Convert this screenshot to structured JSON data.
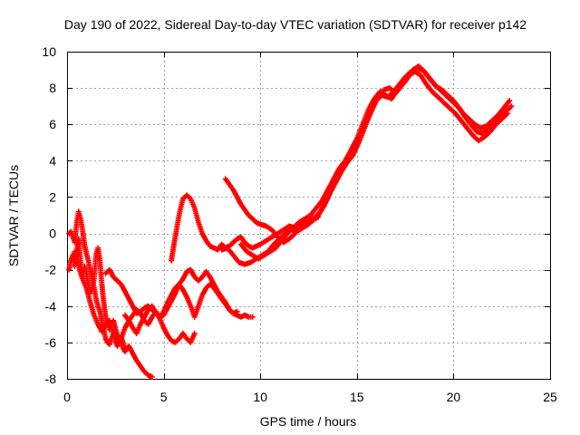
{
  "chart_data": {
    "type": "scatter",
    "title": "Day 190 of 2022, Sidereal Day-to-day VTEC variation (SDTVAR) for receiver p142",
    "xlabel": "GPS time / hours",
    "ylabel": "SDTVAR / TECUs",
    "xlim": [
      0,
      25
    ],
    "ylim": [
      -8,
      10
    ],
    "xticks": [
      0,
      5,
      10,
      15,
      20,
      25
    ],
    "yticks": [
      -8,
      -6,
      -4,
      -2,
      0,
      2,
      4,
      6,
      8,
      10
    ],
    "grid": true,
    "legend": "none",
    "marker": "+",
    "color": "#ff0000",
    "series": [
      {
        "x": [
          0.1,
          0.2,
          0.3,
          0.4,
          0.5,
          0.6,
          0.7,
          0.8,
          0.9,
          1.0,
          1.1,
          1.2,
          1.3,
          1.4,
          1.5,
          1.6,
          1.7,
          1.8,
          1.9,
          2.0,
          2.1,
          2.2,
          2.3,
          2.4,
          2.5,
          2.6,
          2.7,
          2.8,
          2.9,
          3.0
        ],
        "y": [
          0.0,
          0.1,
          -0.2,
          -0.5,
          0.6,
          1.2,
          0.8,
          0.2,
          -0.6,
          -1.1,
          -1.5,
          -2.0,
          -2.5,
          -3.0,
          -3.6,
          -4.0,
          -4.3,
          -4.8,
          -5.3,
          -5.8,
          -6.0,
          -6.1,
          -5.8,
          -5.5,
          -5.9,
          -6.2,
          -6.0,
          -5.7,
          -6.0,
          -6.4
        ]
      },
      {
        "x": [
          0.1,
          0.2,
          0.3,
          0.4,
          0.5,
          0.6,
          0.7,
          0.8,
          0.9,
          1.0,
          1.1,
          1.2,
          1.3,
          1.4,
          1.5,
          1.6,
          1.7,
          1.8,
          1.9,
          2.0,
          2.1,
          2.2,
          2.3,
          2.4,
          2.5,
          2.6,
          2.7,
          2.8,
          2.9,
          3.0,
          3.2,
          3.4,
          3.6,
          3.8,
          4.0,
          4.2,
          4.4
        ],
        "y": [
          -2.0,
          -1.5,
          -1.2,
          -1.8,
          -1.0,
          -0.3,
          -1.6,
          -2.4,
          -1.8,
          -2.2,
          -2.8,
          -3.3,
          -3.0,
          -2.5,
          -1.2,
          -0.8,
          -1.5,
          -2.8,
          -3.8,
          -4.6,
          -5.0,
          -5.3,
          -5.0,
          -4.8,
          -5.2,
          -5.6,
          -5.8,
          -6.0,
          -6.3,
          -6.5,
          -6.2,
          -6.6,
          -7.0,
          -7.3,
          -7.6,
          -7.8,
          -7.9
        ]
      },
      {
        "x": [
          0.2,
          0.4,
          0.6,
          0.8,
          1.0,
          1.2,
          1.4,
          1.6,
          1.8,
          2.0,
          2.2,
          2.4,
          2.6,
          2.8,
          3.0,
          3.2,
          3.4,
          3.6,
          3.8,
          4.0,
          4.2,
          4.4,
          4.6,
          4.8,
          5.0,
          5.2,
          5.4,
          5.6,
          5.8,
          6.0,
          6.2,
          6.4,
          6.6
        ],
        "y": [
          -1.5,
          -1.0,
          -1.8,
          -2.5,
          -3.0,
          -3.8,
          -4.5,
          -5.0,
          -5.4,
          -5.0,
          -4.8,
          -5.5,
          -6.0,
          -5.8,
          -5.2,
          -4.8,
          -4.5,
          -4.2,
          -4.4,
          -4.8,
          -5.0,
          -4.6,
          -4.3,
          -4.7,
          -5.2,
          -5.6,
          -5.9,
          -6.0,
          -5.8,
          -5.5,
          -5.8,
          -6.0,
          -5.5
        ]
      },
      {
        "x": [
          2.0,
          2.2,
          2.4,
          2.6,
          2.8,
          3.0,
          3.2,
          3.4,
          3.6,
          3.8,
          4.0,
          4.2,
          4.4,
          4.6,
          4.8,
          5.0,
          5.2,
          5.4,
          5.6,
          5.8,
          6.0,
          6.2,
          6.4,
          6.6,
          6.8,
          7.0,
          7.2,
          7.4,
          7.6,
          7.8,
          8.0,
          8.2,
          8.4,
          8.6,
          8.8,
          9.0,
          9.2,
          9.4,
          9.6
        ],
        "y": [
          -2.2,
          -2.0,
          -2.4,
          -2.6,
          -2.8,
          -3.2,
          -3.6,
          -4.0,
          -4.4,
          -4.3,
          -4.1,
          -4.0,
          -4.2,
          -4.4,
          -4.6,
          -4.5,
          -4.1,
          -3.7,
          -3.3,
          -2.8,
          -2.5,
          -2.1,
          -2.0,
          -2.4,
          -2.6,
          -2.4,
          -2.1,
          -2.4,
          -2.8,
          -3.2,
          -3.5,
          -3.8,
          -4.2,
          -4.4,
          -4.5,
          -4.6,
          -4.5,
          -4.6,
          -4.6
        ]
      },
      {
        "x": [
          3.0,
          3.2,
          3.4,
          3.6,
          3.8,
          4.0,
          4.2,
          4.4,
          4.6,
          4.8,
          5.0,
          5.2,
          5.4,
          5.6,
          5.8,
          6.0,
          6.2,
          6.4,
          6.6,
          6.8,
          7.0,
          7.2,
          7.4,
          7.6,
          7.8,
          8.0,
          8.2,
          8.4,
          8.6,
          8.8
        ],
        "y": [
          -4.5,
          -4.8,
          -5.2,
          -5.5,
          -5.0,
          -4.6,
          -4.2,
          -4.0,
          -4.4,
          -4.6,
          -4.3,
          -3.8,
          -3.4,
          -3.0,
          -2.8,
          -3.1,
          -3.5,
          -4.0,
          -4.6,
          -4.0,
          -3.4,
          -3.0,
          -2.8,
          -3.0,
          -3.3,
          -3.6,
          -3.9,
          -4.2,
          -4.4,
          -4.3
        ]
      },
      {
        "x": [
          5.4,
          5.5,
          5.6,
          5.7,
          5.8,
          5.9,
          6.0,
          6.1,
          6.2,
          6.4,
          6.6,
          6.8,
          7.0,
          7.2,
          7.4,
          7.6,
          7.8,
          8.0,
          8.2,
          8.4,
          8.6,
          8.8,
          9.0,
          9.2,
          9.4,
          9.6,
          9.8,
          10.0,
          10.3,
          10.6,
          10.9,
          11.2,
          11.5,
          11.8,
          12.1,
          12.4,
          12.7,
          13.0
        ],
        "y": [
          -1.5,
          -0.8,
          -0.2,
          0.4,
          1.0,
          1.5,
          1.9,
          2.0,
          2.1,
          1.9,
          1.4,
          0.6,
          0.0,
          -0.4,
          -0.7,
          -0.8,
          -0.9,
          -0.6,
          -0.8,
          -0.7,
          -0.5,
          -0.3,
          -0.2,
          -0.5,
          -0.7,
          -0.8,
          -0.7,
          -0.6,
          -0.4,
          -0.2,
          0.0,
          0.2,
          0.4,
          0.3,
          0.5,
          0.6,
          0.7,
          0.9
        ]
      },
      {
        "x": [
          8.2,
          8.4,
          8.6,
          8.8,
          9.0,
          9.2,
          9.4,
          9.6,
          9.8,
          10.0,
          10.3,
          10.6,
          10.9,
          11.2,
          11.5,
          11.8,
          12.1,
          12.4,
          12.7,
          13.0,
          13.3,
          13.6,
          13.9,
          14.2,
          14.5,
          14.8,
          15.1,
          15.4,
          15.7,
          16.0,
          16.3,
          16.6,
          16.9,
          17.2,
          17.5,
          17.8,
          18.1,
          18.4,
          18.7,
          19.0,
          19.3,
          19.6,
          19.9,
          20.2,
          20.5,
          20.8,
          21.1,
          21.4,
          21.7,
          22.0,
          22.3,
          22.6,
          22.9
        ],
        "y": [
          3.0,
          2.7,
          2.4,
          2.0,
          1.6,
          1.3,
          1.0,
          0.8,
          0.6,
          0.5,
          0.4,
          0.2,
          -0.2,
          -0.5,
          -0.3,
          0.0,
          0.4,
          0.7,
          0.8,
          1.0,
          1.5,
          2.2,
          2.8,
          3.4,
          3.9,
          4.3,
          5.0,
          5.8,
          6.6,
          7.3,
          7.6,
          7.5,
          7.8,
          8.2,
          8.6,
          8.9,
          9.1,
          9.0,
          8.6,
          8.2,
          7.9,
          7.6,
          7.3,
          7.0,
          6.6,
          6.3,
          6.0,
          5.8,
          5.9,
          6.2,
          6.5,
          6.9,
          7.3
        ]
      },
      {
        "x": [
          9.0,
          9.3,
          9.6,
          9.9,
          10.2,
          10.5,
          10.8,
          11.1,
          11.4,
          11.7,
          12.0,
          12.3,
          12.6,
          12.9,
          13.2,
          13.5,
          13.8,
          14.1,
          14.4,
          14.7,
          15.0,
          15.3,
          15.6,
          15.9,
          16.2,
          16.5,
          16.8,
          17.1,
          17.4,
          17.7,
          18.0,
          18.3,
          18.6,
          18.9,
          19.2,
          19.5,
          19.8,
          20.1,
          20.4,
          20.7,
          21.0,
          21.3,
          21.6,
          21.9,
          22.2,
          22.5,
          22.8
        ],
        "y": [
          -0.6,
          -1.0,
          -1.2,
          -1.4,
          -1.2,
          -1.0,
          -0.8,
          -0.4,
          0.0,
          0.3,
          0.6,
          0.8,
          1.0,
          1.4,
          1.8,
          2.4,
          3.0,
          3.6,
          4.0,
          4.6,
          5.2,
          6.0,
          6.8,
          7.4,
          7.8,
          7.6,
          7.4,
          7.9,
          8.3,
          8.7,
          8.9,
          8.7,
          8.2,
          7.8,
          7.5,
          7.2,
          6.9,
          6.6,
          6.2,
          5.8,
          5.4,
          5.1,
          5.3,
          5.6,
          6.0,
          6.3,
          6.6
        ]
      },
      {
        "x": [
          8.0,
          8.3,
          8.6,
          8.9,
          9.2,
          9.5,
          9.8,
          10.1,
          10.4,
          10.7,
          11.0,
          11.3,
          11.6,
          11.9,
          12.2,
          12.5,
          12.8,
          13.1,
          13.4,
          13.7,
          14.0,
          14.3,
          14.6,
          14.9,
          15.2,
          15.5,
          15.8,
          16.1,
          16.4,
          16.7,
          17.0,
          17.3,
          17.6,
          17.9,
          18.2,
          18.5,
          18.8,
          19.1,
          19.4,
          19.7,
          20.0,
          20.3,
          20.6,
          20.9,
          21.2,
          21.5,
          21.8,
          22.1,
          22.4,
          22.7,
          23.0
        ],
        "y": [
          -0.9,
          -0.8,
          -1.2,
          -1.6,
          -1.7,
          -1.6,
          -1.4,
          -1.2,
          -1.0,
          -0.6,
          -0.3,
          0.0,
          0.2,
          0.1,
          0.3,
          0.5,
          0.8,
          1.2,
          1.8,
          2.5,
          3.2,
          3.8,
          4.3,
          4.9,
          5.4,
          6.2,
          7.0,
          7.6,
          7.9,
          8.0,
          7.7,
          8.1,
          8.5,
          9.0,
          9.2,
          8.9,
          8.5,
          8.1,
          7.9,
          7.6,
          7.3,
          6.9,
          6.4,
          6.0,
          5.6,
          5.5,
          5.8,
          6.1,
          6.4,
          6.7,
          7.0
        ]
      }
    ]
  }
}
